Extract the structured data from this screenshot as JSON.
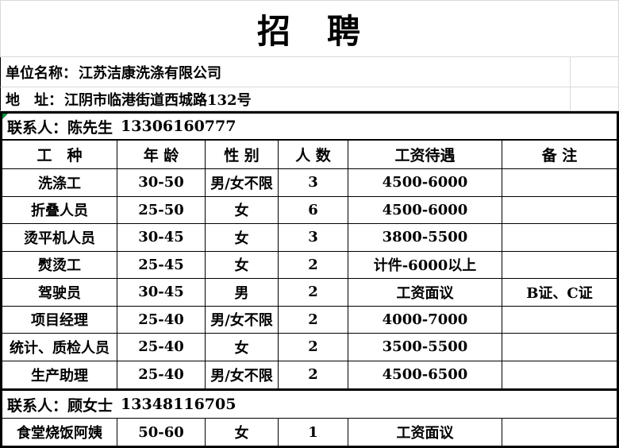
{
  "title": "招　聘",
  "company": {
    "label": "单位名称：",
    "value": "江苏洁康洗涤有限公司"
  },
  "address": {
    "label": "地　址：",
    "value": "江阴市临港街道西城路132号"
  },
  "contacts": {
    "primary": {
      "label": "联系人：",
      "name": "陈先生",
      "phone": "13306160777"
    },
    "secondary": {
      "label": "联系人：",
      "name": "顾女士",
      "phone": "13348116705"
    }
  },
  "jobs_table": {
    "headers": [
      "工　种",
      "年 龄",
      "性 别",
      "人 数",
      "工资待遇",
      "备 注"
    ],
    "rows": [
      [
        "洗涤工",
        "30-50",
        "男/女不限",
        "3",
        "4500-6000",
        ""
      ],
      [
        "折叠人员",
        "25-50",
        "女",
        "6",
        "4500-6000",
        ""
      ],
      [
        "烫平机人员",
        "30-45",
        "女",
        "3",
        "3800-5500",
        ""
      ],
      [
        "熨烫工",
        "25-45",
        "女",
        "2",
        "计件-6000以上",
        ""
      ],
      [
        "驾驶员",
        "30-45",
        "男",
        "2",
        "工资面议",
        "B证、C证"
      ],
      [
        "项目经理",
        "25-40",
        "男/女不限",
        "2",
        "4000-7000",
        ""
      ],
      [
        "统计、质检人员",
        "25-40",
        "女",
        "2",
        "3500-5500",
        ""
      ],
      [
        "生产助理",
        "25-40",
        "男/女不限",
        "2",
        "4500-6500",
        ""
      ]
    ],
    "canteen_row": [
      "食堂烧饭阿姨",
      "50-60",
      "女",
      "1",
      "工资面议",
      ""
    ]
  },
  "icons": {
    "cell_error_indicator": "green-corner-triangle"
  },
  "colors": {
    "border": "#000000",
    "gridline": "#d9d9d9",
    "indicator_green": "#0e8c3c",
    "text": "#000000",
    "background": "#ffffff"
  }
}
